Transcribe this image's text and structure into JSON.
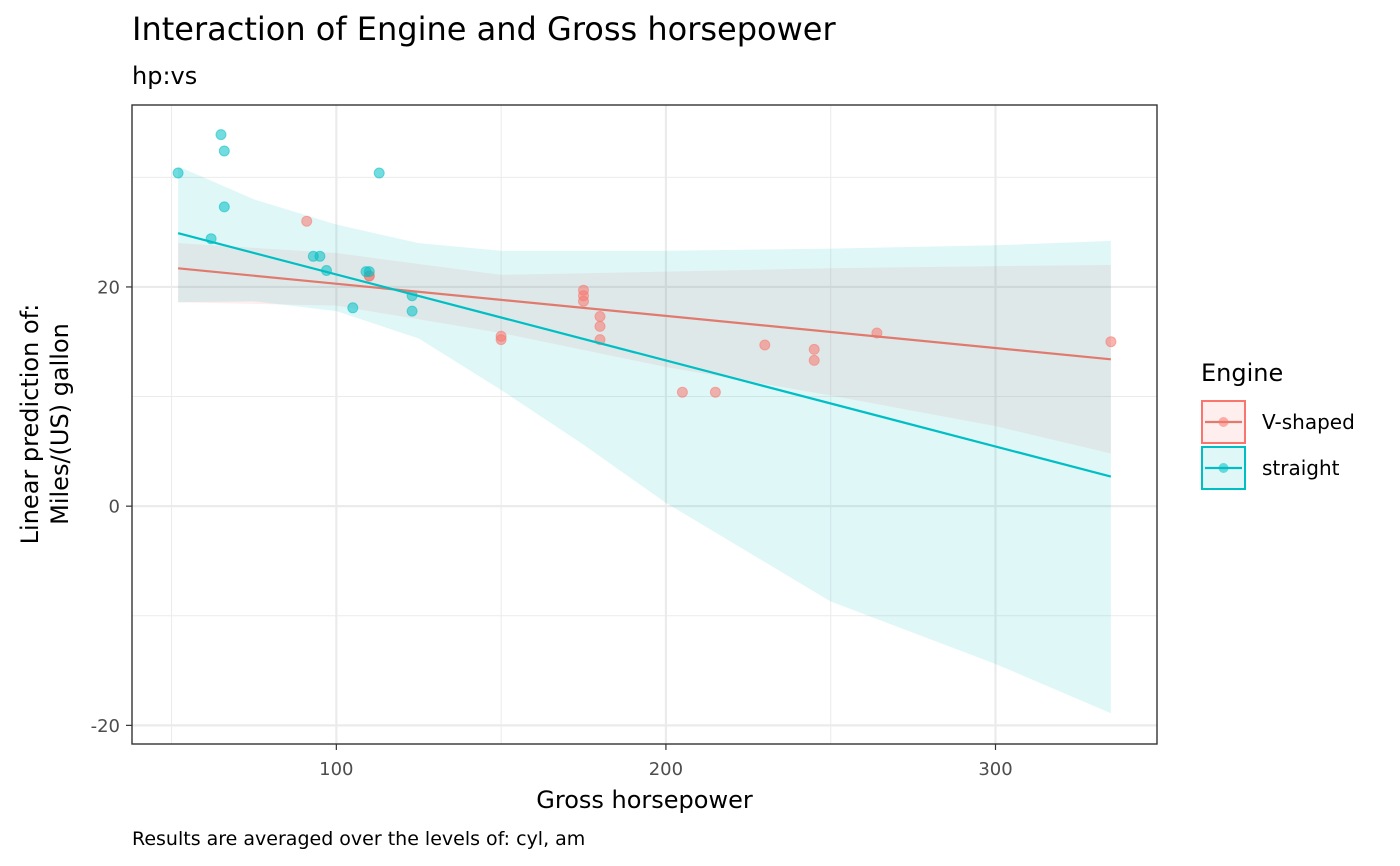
{
  "chart_data": {
    "type": "scatter",
    "title": "Interaction of Engine and Gross horsepower",
    "subtitle": "hp:vs",
    "xlabel": "Gross horsepower",
    "ylabel_line1": "Linear prediction of:",
    "ylabel_line2": "Miles/(US) gallon",
    "caption": "Results are averaged over the levels of: cyl, am",
    "xlim": [
      38,
      349
    ],
    "ylim": [
      -21.7,
      36.6
    ],
    "x_ticks": [
      100,
      200,
      300
    ],
    "x_tick_labels": [
      "100",
      "200",
      "300"
    ],
    "y_ticks": [
      -20,
      0,
      20
    ],
    "y_tick_labels": [
      "-20",
      "0",
      "20"
    ],
    "grid": true,
    "legend": {
      "title": "Engine",
      "position": "right",
      "entries": [
        "V-shaped",
        "straight"
      ]
    },
    "series": [
      {
        "name": "V-shaped",
        "color": "#F8766D",
        "line_color": "#E07A6E",
        "fit_line": [
          [
            52,
            21.7
          ],
          [
            335,
            13.4
          ]
        ],
        "ci_band": {
          "x": [
            52,
            100,
            150,
            200,
            250,
            300,
            335
          ],
          "lower": [
            18.6,
            18.3,
            15.8,
            12.7,
            10.1,
            7.3,
            4.8
          ],
          "upper": [
            24.0,
            23.1,
            21.1,
            21.4,
            21.7,
            21.9,
            22.0
          ]
        },
        "points": [
          [
            91,
            26.0
          ],
          [
            110,
            21.0
          ],
          [
            110,
            21.0
          ],
          [
            175,
            19.7
          ],
          [
            175,
            19.2
          ],
          [
            175,
            18.7
          ],
          [
            180,
            17.3
          ],
          [
            180,
            16.4
          ],
          [
            180,
            15.2
          ],
          [
            150,
            15.5
          ],
          [
            150,
            15.2
          ],
          [
            205,
            10.4
          ],
          [
            215,
            10.4
          ],
          [
            230,
            14.7
          ],
          [
            245,
            14.3
          ],
          [
            245,
            13.3
          ],
          [
            264,
            15.8
          ],
          [
            335,
            15.0
          ]
        ]
      },
      {
        "name": "straight",
        "color": "#00BFC4",
        "line_color": "#00BFC4",
        "fit_line": [
          [
            52,
            24.9
          ],
          [
            335,
            2.7
          ]
        ],
        "ci_band": {
          "x": [
            52,
            75,
            100,
            125,
            150,
            175,
            200,
            250,
            300,
            335
          ],
          "lower": [
            18.6,
            18.7,
            17.8,
            15.3,
            10.6,
            5.6,
            0.3,
            -8.7,
            -14.4,
            -18.9
          ],
          "upper": [
            31.0,
            28.0,
            25.7,
            24.0,
            23.3,
            23.3,
            23.3,
            23.5,
            23.8,
            24.2
          ]
        },
        "points": [
          [
            52,
            30.4
          ],
          [
            62,
            24.4
          ],
          [
            65,
            33.9
          ],
          [
            66,
            32.4
          ],
          [
            66,
            27.3
          ],
          [
            93,
            22.8
          ],
          [
            95,
            22.8
          ],
          [
            97,
            21.5
          ],
          [
            109,
            21.4
          ],
          [
            110,
            21.4
          ],
          [
            105,
            18.1
          ],
          [
            113,
            30.4
          ],
          [
            123,
            19.2
          ],
          [
            123,
            17.8
          ]
        ]
      }
    ]
  }
}
